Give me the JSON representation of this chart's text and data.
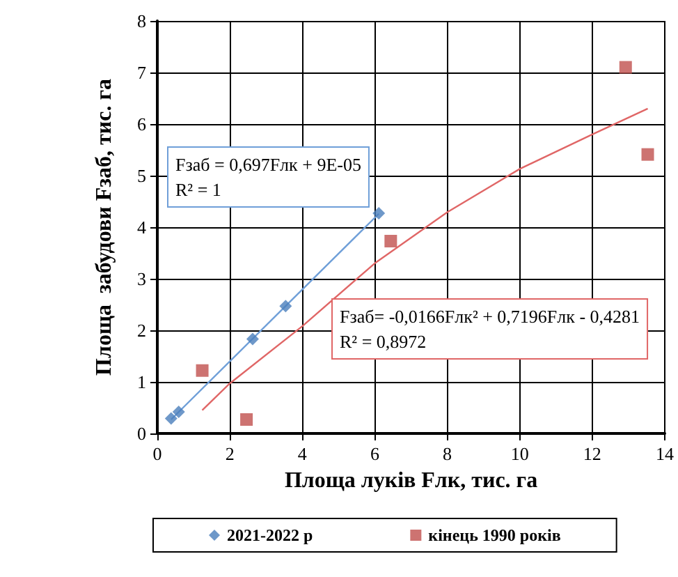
{
  "chart_data": {
    "type": "scatter",
    "xlabel": "Площа луків Fлк, тис. га",
    "ylabel": "Площа  забудови Fзаб, тис. га",
    "xlim": [
      0,
      14
    ],
    "xticks": [
      0,
      2,
      4,
      6,
      8,
      10,
      12,
      14
    ],
    "ylim": [
      0,
      8
    ],
    "yticks": [
      0,
      1,
      2,
      3,
      4,
      5,
      6,
      7,
      8
    ],
    "grid": true,
    "legend": "bottom",
    "series": [
      {
        "name": "2021-2022 р",
        "color": "#4a7ebb",
        "marker": "diamond",
        "x": [
          0.38,
          0.59,
          2.63,
          3.54,
          6.11
        ],
        "values": [
          0.29,
          0.42,
          1.83,
          2.47,
          4.27
        ]
      },
      {
        "name": "кінець 1990 років",
        "color": "#c0504d",
        "marker": "square",
        "x": [
          1.24,
          2.46,
          6.44,
          12.92,
          13.53
        ],
        "values": [
          1.22,
          0.27,
          3.73,
          7.1,
          5.41
        ]
      },
      {
        "type": "line",
        "color": "#6f9fd8",
        "marker": "none",
        "x": [
          0.38,
          6.11
        ],
        "values": [
          0.27,
          4.26
        ]
      },
      {
        "type": "line",
        "color": "#e06666",
        "marker": "none",
        "x": [
          1.24,
          2,
          4,
          6,
          8,
          10,
          12,
          13.53
        ],
        "values": [
          0.45,
          0.97,
          2.08,
          3.3,
          4.29,
          5.13,
          5.8,
          6.3
        ]
      }
    ],
    "annotations": [
      "Fзаб = 0,697Fлк + 9E-05\nR² = 1",
      "Fзаб= -0,0166Fлк² + 0,7196Fлк - 0,4281\nR² = 0,8972"
    ]
  }
}
